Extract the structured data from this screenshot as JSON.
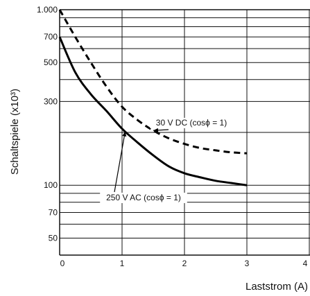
{
  "chart_data": {
    "type": "line",
    "xlabel": "Laststrom (A)",
    "ylabel": "Schaltspiele (x10³)",
    "xlim": [
      0,
      4
    ],
    "ylim": [
      40,
      1000
    ],
    "y_scale": "log",
    "grid": true,
    "x_ticks": [
      0,
      1,
      2,
      3,
      4
    ],
    "x_tick_labels": [
      "0",
      "1",
      "2",
      "3",
      "4"
    ],
    "y_ticks": [
      1000,
      700,
      500,
      300,
      100,
      70,
      50
    ],
    "y_tick_labels": [
      "1.000",
      "700",
      "500",
      "300",
      "100",
      "70",
      "50"
    ],
    "series": [
      {
        "style": "dashed",
        "x": [
          0,
          0.25,
          0.5,
          0.75,
          1,
          1.25,
          1.5,
          1.75,
          2,
          2.25,
          2.5,
          2.75,
          3
        ],
        "y": [
          1000,
          700,
          500,
          365,
          280,
          235,
          205,
          185,
          172,
          163,
          158,
          154,
          152
        ]
      },
      {
        "style": "solid",
        "x": [
          0,
          0.25,
          0.5,
          0.75,
          1,
          1.25,
          1.5,
          1.75,
          2,
          2.25,
          2.5,
          2.75,
          3
        ],
        "y": [
          700,
          440,
          330,
          265,
          210,
          175,
          148,
          128,
          117,
          111,
          106,
          103,
          100
        ]
      }
    ],
    "annotations": [
      {
        "text": "30 V DC (cosϕ = 1)",
        "target_series": 0,
        "target_x": 1.5
      },
      {
        "text": "250 V AC (cosϕ = 1)",
        "target_series": 1,
        "target_x": 1.05
      }
    ]
  }
}
